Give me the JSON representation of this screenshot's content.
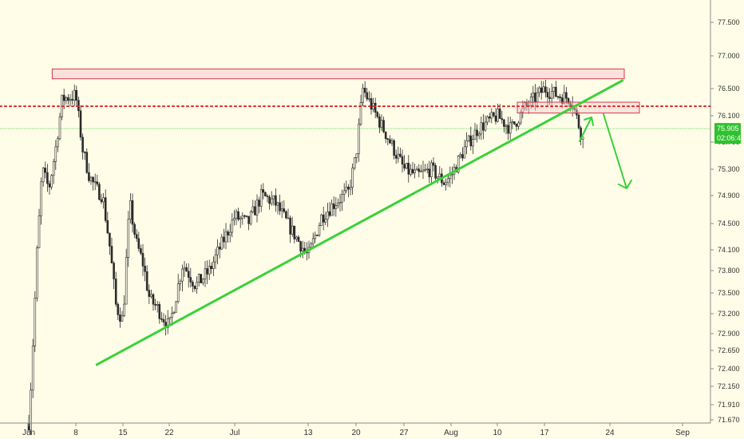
{
  "colors": {
    "background": "#fffde8",
    "axis_line": "#8a8a8a",
    "candle": "#2b2b2b",
    "candle_up_fill": "#fffde8",
    "trendline": "#3ad13a",
    "price_line": "#3ad13a",
    "resistance_zone_stroke": "#d4394f",
    "resistance_zone_fill": "#f7c9cf",
    "dotted_level": "#e02424",
    "price_badge": "#2fc12f",
    "price_badge_text": "#ffffff"
  },
  "chart_data": {
    "type": "candlestick",
    "y_axis": {
      "position": "right",
      "ylim": [
        71.6,
        78.05
      ],
      "ticks": [
        "77.500",
        "77.000",
        "76.500",
        "76.100",
        "75.700",
        "75.300",
        "74.900",
        "74.500",
        "74.100",
        "73.800",
        "73.500",
        "73.200",
        "72.900",
        "72.650",
        "72.400",
        "72.150",
        "71.910",
        "71.670"
      ]
    },
    "x_axis": {
      "ticks": [
        "Jun",
        "8",
        "15",
        "22",
        "Jul",
        "13",
        "20",
        "27",
        "Aug",
        "10",
        "17",
        "24",
        "Sep"
      ]
    },
    "current_price": {
      "value": 75.905,
      "label": "75.905",
      "countdown": "02:06:46"
    },
    "price_path": [
      [
        "Jun",
        71.62
      ],
      [
        "Jun+0.5",
        72.5
      ],
      [
        "Jun+1.2",
        74.0
      ],
      [
        "Jun+2",
        75.3
      ],
      [
        "Jun+3",
        75.0
      ],
      [
        "Jun+4",
        75.6
      ],
      [
        "Jun+5",
        76.35
      ],
      [
        "8",
        76.4
      ],
      [
        "8+1",
        75.6
      ],
      [
        "8+2",
        75.2
      ],
      [
        "8+3",
        75.0
      ],
      [
        "8+4",
        74.9
      ],
      [
        "8+5",
        74.2
      ],
      [
        "8+6",
        73.3
      ],
      [
        "15",
        73.1
      ],
      [
        "15+1",
        74.8
      ],
      [
        "15+2",
        74.2
      ],
      [
        "15+3",
        73.9
      ],
      [
        "15+4",
        73.4
      ],
      [
        "15+5",
        73.3
      ],
      [
        "22",
        73.0
      ],
      [
        "22+2",
        73.9
      ],
      [
        "22+4",
        73.6
      ],
      [
        "22+6",
        73.8
      ],
      [
        "Jul",
        74.6
      ],
      [
        "Jul+2",
        74.5
      ],
      [
        "Jul+4",
        74.9
      ],
      [
        "Jul+6",
        74.8
      ],
      [
        "13",
        74.0
      ],
      [
        "13+2",
        74.6
      ],
      [
        "13+4",
        74.8
      ],
      [
        "13+6",
        74.95
      ],
      [
        "20",
        75.5
      ],
      [
        "20+1",
        76.5
      ],
      [
        "20+2",
        76.3
      ],
      [
        "27",
        75.3
      ],
      [
        "27+2",
        75.2
      ],
      [
        "27+4",
        75.3
      ],
      [
        "27+6",
        75.1
      ],
      [
        "Aug",
        75.2
      ],
      [
        "Aug+2",
        75.6
      ],
      [
        "Aug+4",
        75.9
      ],
      [
        "10",
        76.1
      ],
      [
        "10+2",
        75.9
      ],
      [
        "10+4",
        76.2
      ],
      [
        "17",
        76.5
      ],
      [
        "17+2",
        76.4
      ],
      [
        "17+4",
        76.35
      ],
      [
        "17+5",
        76.0
      ],
      [
        "17+6",
        75.65
      ]
    ],
    "annotations": {
      "resistance_zone": [
        76.65,
        76.8
      ],
      "support_zone": [
        76.14,
        76.3
      ],
      "dotted_level": 76.24,
      "rising_trendline": [
        [
          "8+3",
          72.45
        ],
        [
          "24+2",
          76.63
        ]
      ]
    }
  }
}
